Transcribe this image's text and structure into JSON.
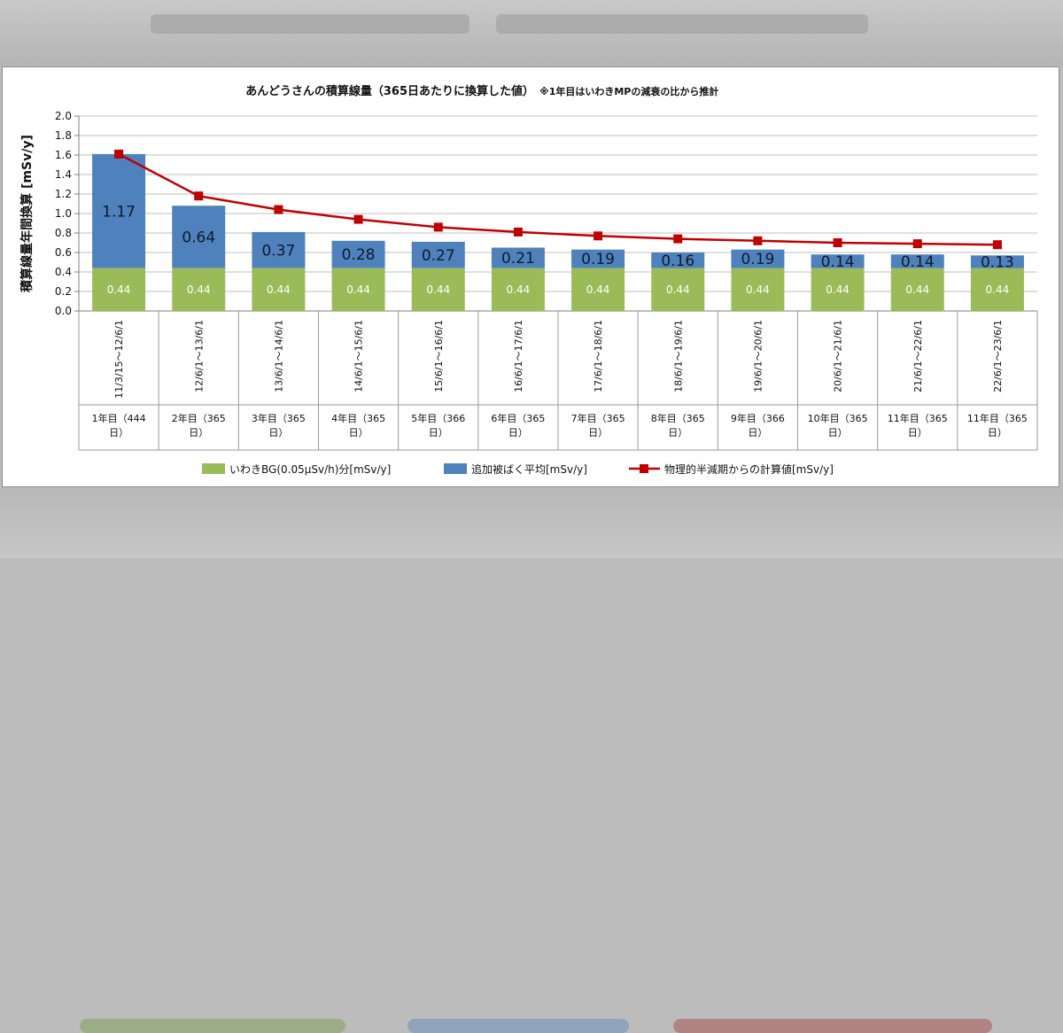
{
  "colors": {
    "bg": "#9bbb59",
    "added": "#4f81bd",
    "calc": "#c00000",
    "grid": "#bfbfbf"
  },
  "chart_data": {
    "type": "bar",
    "stacked": true,
    "title": "あんどうさんの積算線量（365日あたりに換算した値）",
    "title_note": "※1年目はいわきMPの減衰の比から推計",
    "ylabel": "積算線量年間換算 [mSv/y]",
    "ylim": [
      0,
      2.0
    ],
    "yticks": [
      "0.0",
      "0.2",
      "0.4",
      "0.6",
      "0.8",
      "1.0",
      "1.2",
      "1.4",
      "1.6",
      "1.8",
      "2.0"
    ],
    "categories": [
      "11/3/15～12/6/1",
      "12/6/1～13/6/1",
      "13/6/1～14/6/1",
      "14/6/1～15/6/1",
      "15/6/1～16/6/1",
      "16/6/1～17/6/1",
      "17/6/1～18/6/1",
      "18/6/1～19/6/1",
      "19/6/1～20/6/1",
      "20/6/1～21/6/1",
      "21/6/1～22/6/1",
      "22/6/1～23/6/1"
    ],
    "period_labels": [
      "1年目（444日）",
      "2年目（365日）",
      "3年目（365日）",
      "4年目（365日）",
      "5年目（366日）",
      "6年目（365日）",
      "7年目（365日）",
      "8年目（365日）",
      "9年目（366日）",
      "10年目（365日）",
      "11年目（365日）",
      "11年目（365日）"
    ],
    "series": [
      {
        "name": "いわきBG(0.05µSv/h)分[mSv/y]",
        "kind": "bar",
        "values": [
          0.44,
          0.44,
          0.44,
          0.44,
          0.44,
          0.44,
          0.44,
          0.44,
          0.44,
          0.44,
          0.44,
          0.44
        ],
        "labels": [
          "0.44",
          "0.44",
          "0.44",
          "0.44",
          "0.44",
          "0.44",
          "0.44",
          "0.44",
          "0.44",
          "0.44",
          "0.44",
          "0.44"
        ]
      },
      {
        "name": "追加被ばく平均[mSv/y]",
        "kind": "bar",
        "values": [
          1.17,
          0.64,
          0.37,
          0.28,
          0.27,
          0.21,
          0.19,
          0.16,
          0.19,
          0.14,
          0.14,
          0.13
        ],
        "labels": [
          "1.17",
          "0.64",
          "0.37",
          "0.28",
          "0.27",
          "0.21",
          "0.19",
          "0.16",
          "0.19",
          "0.14",
          "0.14",
          "0.13"
        ]
      },
      {
        "name": "物理的半減期からの計算値[mSv/y]",
        "kind": "line",
        "values": [
          1.61,
          1.18,
          1.04,
          0.94,
          0.86,
          0.81,
          0.77,
          0.74,
          0.72,
          0.7,
          0.69,
          0.68
        ]
      }
    ],
    "legend_position": "bottom"
  }
}
